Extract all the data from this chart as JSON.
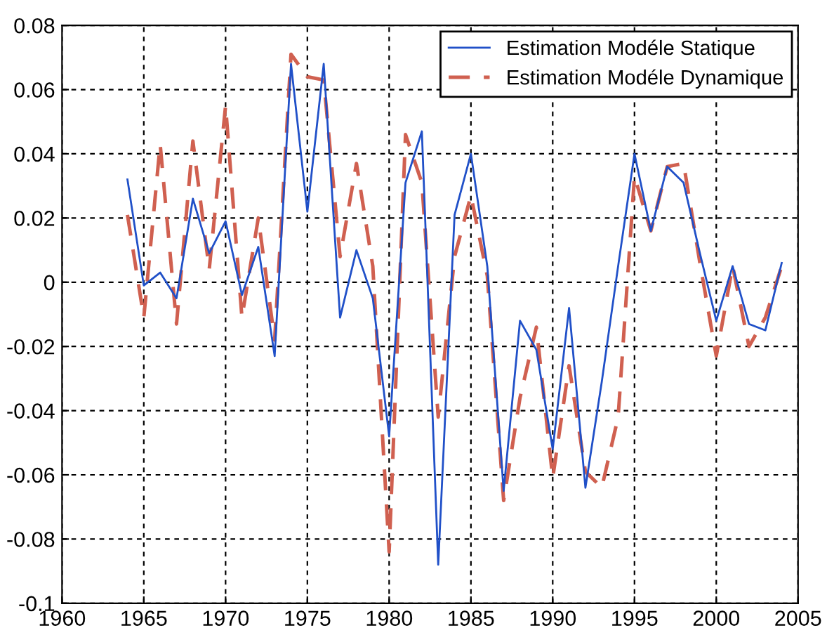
{
  "chart_data": {
    "type": "line",
    "x": [
      1964,
      1965,
      1966,
      1967,
      1968,
      1969,
      1970,
      1971,
      1972,
      1973,
      1974,
      1975,
      1976,
      1977,
      1978,
      1979,
      1980,
      1981,
      1982,
      1983,
      1984,
      1985,
      1986,
      1987,
      1988,
      1989,
      1990,
      1991,
      1992,
      1993,
      1994,
      1995,
      1996,
      1997,
      1998,
      1999,
      2000,
      2001,
      2002,
      2003,
      2004
    ],
    "series": [
      {
        "name": "Estimation Modéle Statique",
        "color": "#2050c8",
        "line_style": "solid",
        "values": [
          0.032,
          -0.001,
          0.003,
          -0.005,
          0.026,
          0.009,
          0.019,
          -0.004,
          0.011,
          -0.023,
          0.068,
          0.022,
          0.068,
          -0.011,
          0.01,
          -0.005,
          -0.048,
          0.031,
          0.047,
          -0.088,
          0.021,
          0.04,
          0.005,
          -0.065,
          -0.012,
          -0.021,
          -0.052,
          -0.008,
          -0.064,
          -0.031,
          0.005,
          0.04,
          0.016,
          0.036,
          0.031,
          0.009,
          -0.012,
          0.005,
          -0.013,
          -0.015,
          0.006
        ]
      },
      {
        "name": "Estimation Modéle Dynamique",
        "color": "#d06050",
        "line_style": "dashed",
        "values": [
          0.021,
          -0.011,
          0.043,
          -0.013,
          0.044,
          0.004,
          0.055,
          -0.011,
          0.02,
          -0.018,
          0.071,
          0.064,
          0.063,
          0.008,
          0.037,
          0.005,
          -0.084,
          0.046,
          0.031,
          -0.042,
          0.008,
          0.027,
          0.002,
          -0.068,
          -0.036,
          -0.014,
          -0.061,
          -0.026,
          -0.059,
          -0.064,
          -0.042,
          0.033,
          0.016,
          0.036,
          0.037,
          0.006,
          -0.023,
          0.005,
          -0.02,
          -0.011,
          0.005
        ]
      }
    ],
    "xlim": [
      1960,
      2005
    ],
    "xticks": [
      1960,
      1965,
      1970,
      1975,
      1980,
      1985,
      1990,
      1995,
      2000,
      2005
    ],
    "ylim": [
      -0.1,
      0.08
    ],
    "yticks": [
      -0.1,
      -0.08,
      -0.06,
      -0.04,
      -0.02,
      0,
      0.02,
      0.04,
      0.06,
      0.08
    ],
    "grid": true,
    "legend": "top right"
  }
}
